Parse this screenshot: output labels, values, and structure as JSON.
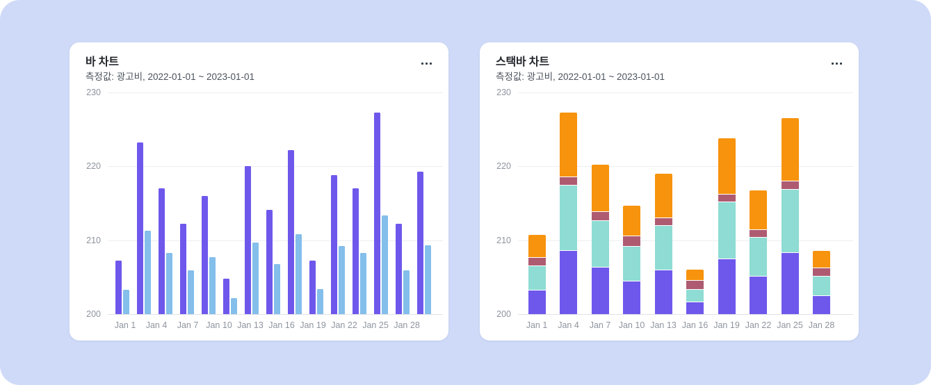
{
  "page": {
    "background_color": "#CEDAF7",
    "card_color": "#FFFFFF"
  },
  "chart_data": [
    {
      "id": "bar-chart-card",
      "type": "bar",
      "title": "바 차트",
      "subtitle": "측정값: 광고비, 2022-01-01 ~ 2023-01-01",
      "menu_icon": "ellipsis-icon",
      "ylabel": "",
      "xlabel": "",
      "ylim": [
        200,
        230
      ],
      "yticks": [
        "230",
        "220",
        "210",
        "200"
      ],
      "xticks": [
        "Jan 1",
        "Jan 4",
        "Jan 7",
        "Jan 10",
        "Jan 13",
        "Jan 16",
        "Jan 19",
        "Jan 22",
        "Jan 25",
        "Jan 28"
      ],
      "grid": true,
      "legend": "none",
      "series": [
        {
          "name": "series-1",
          "color": "#6E58EC",
          "values": [
            207.2,
            223.2,
            217.0,
            212.2,
            216.0,
            204.8,
            220.0,
            214.1,
            222.2,
            207.2,
            218.8,
            217.0,
            227.3,
            212.2,
            219.3
          ]
        },
        {
          "name": "series-2",
          "color": "#84BEEB",
          "values": [
            203.3,
            211.3,
            208.3,
            205.9,
            207.7,
            202.2,
            209.7,
            206.8,
            210.8,
            203.4,
            209.2,
            208.3,
            213.4,
            205.9,
            209.3
          ]
        }
      ]
    },
    {
      "id": "stacked-bar-chart-card",
      "type": "stacked-bar",
      "title": "스택바 차트",
      "subtitle": "측정값: 광고비, 2022-01-01 ~ 2023-01-01",
      "menu_icon": "ellipsis-icon",
      "ylabel": "",
      "xlabel": "",
      "ylim": [
        200,
        230
      ],
      "yticks": [
        "230",
        "220",
        "210",
        "200"
      ],
      "xticks": [
        "Jan 1",
        "Jan 4",
        "Jan 7",
        "Jan 10",
        "Jan 13",
        "Jan 16",
        "Jan 19",
        "Jan 22",
        "Jan 25",
        "Jan 28"
      ],
      "grid": true,
      "legend": "none",
      "stack_base": 200,
      "series": [
        {
          "name": "segment-1",
          "color": "#6E58EC",
          "values": [
            3.2,
            8.6,
            6.3,
            4.4,
            5.9,
            1.6,
            7.4,
            5.1,
            8.3,
            2.4
          ]
        },
        {
          "name": "segment-2",
          "color": "#8EDCD3",
          "values": [
            3.3,
            8.8,
            6.3,
            4.7,
            6.0,
            1.7,
            7.7,
            5.2,
            8.5,
            2.7
          ]
        },
        {
          "name": "segment-3",
          "color": "#AE5B72",
          "values": [
            1.1,
            1.1,
            1.2,
            1.4,
            1.1,
            1.2,
            1.1,
            1.1,
            1.2,
            1.1
          ]
        },
        {
          "name": "segment-4",
          "color": "#F7930D",
          "values": [
            3.1,
            8.8,
            6.4,
            4.2,
            6.0,
            1.5,
            7.6,
            5.3,
            8.5,
            2.4
          ]
        }
      ]
    }
  ]
}
